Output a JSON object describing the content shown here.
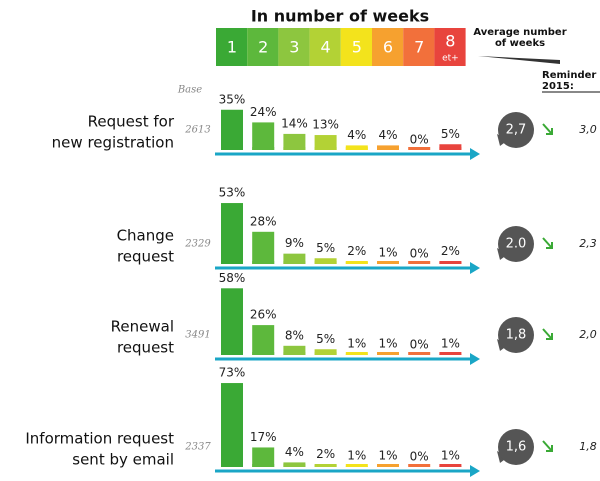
{
  "chart_data": {
    "type": "bar",
    "title": "In number of weeks",
    "categories": [
      "1",
      "2",
      "3",
      "4",
      "5",
      "6",
      "7",
      "8"
    ],
    "last_category_note": "et+",
    "colors": [
      "#3aa935",
      "#5db83c",
      "#8dc63f",
      "#b3d235",
      "#f3e31c",
      "#f6a12f",
      "#f2703b",
      "#e8443d"
    ],
    "base_label": "Base",
    "average_label": [
      "Average number",
      "of weeks"
    ],
    "reminder_label": [
      "Reminder",
      "2015:"
    ],
    "groups": [
      {
        "name": [
          "Request for",
          "new registration"
        ],
        "base": 2613,
        "values": [
          35,
          24,
          14,
          13,
          4,
          4,
          0,
          5
        ],
        "value_labels": [
          "35%",
          "24%",
          "14%",
          "13%",
          "4%",
          "4%",
          "0%",
          "5%"
        ],
        "average": 2.7,
        "average_label": "2,7",
        "reminder": 3.0,
        "reminder_label": "3,0"
      },
      {
        "name": [
          "Change",
          "request"
        ],
        "base": 2329,
        "values": [
          53,
          28,
          9,
          5,
          2,
          1,
          0,
          2
        ],
        "value_labels": [
          "53%",
          "28%",
          "9%",
          "5%",
          "2%",
          "1%",
          "0%",
          "2%"
        ],
        "average": 2.0,
        "average_label": "2.0",
        "reminder": 2.3,
        "reminder_label": "2,3"
      },
      {
        "name": [
          "Renewal",
          "request"
        ],
        "base": 3491,
        "values": [
          58,
          26,
          8,
          5,
          1,
          1,
          0,
          1
        ],
        "value_labels": [
          "58%",
          "26%",
          "8%",
          "5%",
          "1%",
          "1%",
          "0%",
          "1%"
        ],
        "average": 1.8,
        "average_label": "1,8",
        "reminder": 2.0,
        "reminder_label": "2,0"
      },
      {
        "name": [
          "Information request",
          "sent by email"
        ],
        "base": 2337,
        "values": [
          73,
          17,
          4,
          2,
          1,
          1,
          0,
          1
        ],
        "value_labels": [
          "73%",
          "17%",
          "4%",
          "2%",
          "1%",
          "1%",
          "0%",
          "1%"
        ],
        "average": 1.6,
        "average_label": "1,6",
        "reminder": 1.8,
        "reminder_label": "1,8"
      }
    ]
  }
}
